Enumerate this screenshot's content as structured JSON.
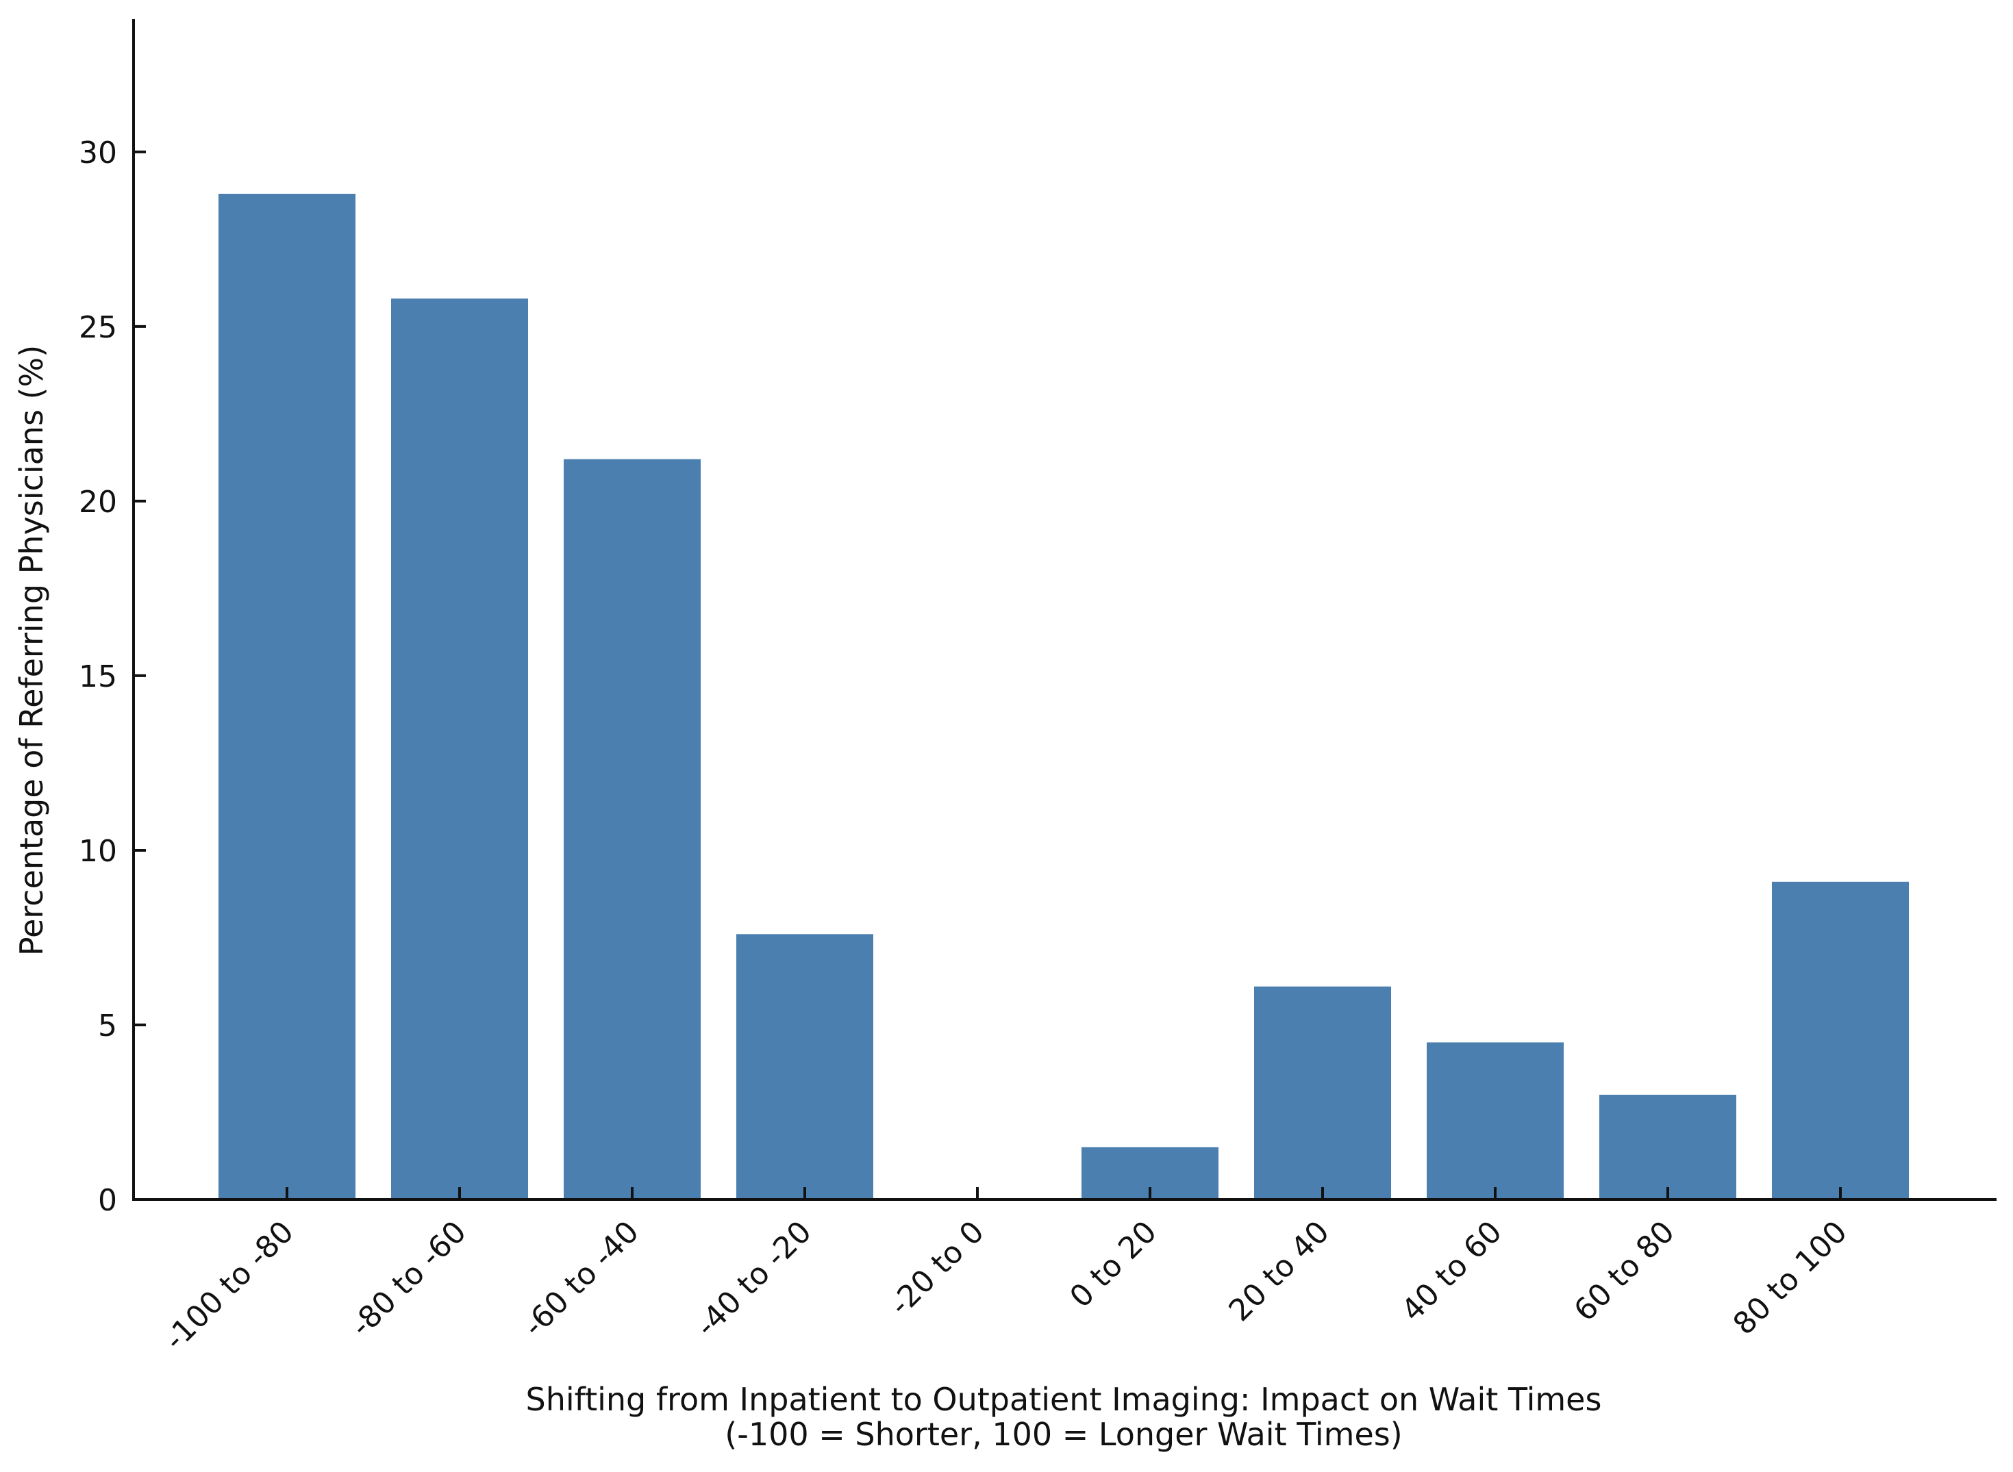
{
  "chart_data": {
    "type": "bar",
    "title": "",
    "xlabel_lines": [
      "Shifting from Inpatient to Outpatient Imaging: Impact on Wait Times",
      "(-100 = Shorter, 100 = Longer Wait Times)"
    ],
    "ylabel": "Percentage of  Referring Physicians (%)",
    "categories": [
      "-100 to -80",
      "-80 to -60",
      "-60 to -40",
      "-40 to -20",
      "-20 to 0",
      "0 to 20",
      "20 to 40",
      "40 to 60",
      "60 to 80",
      "80 to 100"
    ],
    "series": [
      {
        "values": [
          28.8,
          25.8,
          21.2,
          7.6,
          0,
          1.5,
          6.1,
          4.5,
          3.0,
          9.1
        ]
      }
    ],
    "yticks": [
      0,
      5,
      10,
      15,
      20,
      25,
      30
    ],
    "ylim": [
      0,
      33.8
    ],
    "grid": false,
    "bar_color": "#4a7fb0",
    "axis_color": "#111111"
  }
}
